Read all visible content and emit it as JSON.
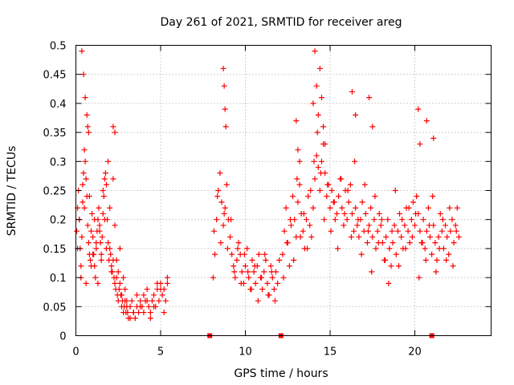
{
  "chart_data": {
    "type": "scatter",
    "title": "Day 261 of 2021, SRMTID for receiver areg",
    "xlabel": "GPS time / hours",
    "ylabel": "SRMTID / TECUs",
    "xlim": [
      0,
      24.5
    ],
    "ylim": [
      0,
      0.5
    ],
    "xticks": [
      0,
      5,
      10,
      15,
      20
    ],
    "yticks": [
      0,
      0.05,
      0.1,
      0.15,
      0.2,
      0.25,
      0.3,
      0.35,
      0.4,
      0.45,
      0.5
    ],
    "xtick_labels": [
      "0",
      "5",
      "10",
      "15",
      "20"
    ],
    "ytick_labels": [
      "0",
      "0.05",
      "0.1",
      "0.15",
      "0.2",
      "0.25",
      "0.3",
      "0.35",
      "0.4",
      "0.45",
      "0.5"
    ],
    "grid": true,
    "marker": "plus",
    "color": "#ff0000",
    "zero_markers": [
      {
        "x": 7.9,
        "y": 0
      },
      {
        "x": 12.1,
        "y": 0
      },
      {
        "x": 21.0,
        "y": 0
      }
    ],
    "series": [
      {
        "name": "SRMTID",
        "x": [
          0.05,
          0.1,
          0.15,
          0.2,
          0.25,
          0.3,
          0.35,
          0.4,
          0.45,
          0.5,
          0.55,
          0.6,
          0.65,
          0.7,
          0.75,
          0.8,
          0.85,
          0.9,
          0.95,
          1.0,
          1.05,
          1.1,
          1.15,
          1.2,
          1.25,
          1.3,
          1.35,
          1.4,
          1.45,
          1.5,
          1.55,
          1.6,
          1.65,
          1.7,
          1.75,
          1.8,
          1.85,
          1.9,
          1.95,
          2.0,
          2.05,
          2.1,
          2.15,
          2.2,
          2.25,
          2.3,
          2.35,
          2.4,
          2.45,
          2.5,
          2.55,
          2.6,
          2.65,
          2.7,
          2.75,
          2.8,
          2.85,
          2.9,
          2.95,
          3.0,
          3.05,
          3.1,
          3.2,
          3.3,
          3.4,
          3.5,
          3.6,
          3.7,
          3.8,
          3.9,
          4.0,
          4.1,
          4.2,
          4.3,
          4.4,
          4.5,
          4.6,
          4.7,
          4.8,
          4.9,
          5.0,
          5.1,
          5.2,
          5.3,
          5.4,
          0.1,
          0.2,
          0.3,
          0.4,
          0.5,
          0.6,
          0.7,
          0.8,
          0.9,
          1.0,
          1.1,
          1.2,
          1.3,
          1.4,
          1.5,
          1.6,
          1.7,
          1.8,
          1.9,
          2.0,
          2.1,
          2.2,
          2.3,
          2.4,
          2.5,
          2.6,
          2.7,
          2.8,
          2.9,
          3.0,
          3.2,
          3.4,
          3.6,
          3.8,
          4.0,
          4.2,
          4.4,
          4.6,
          4.8,
          5.0,
          5.2,
          5.4,
          0.35,
          0.45,
          0.55,
          0.65,
          0.75,
          2.2,
          2.3,
          8.1,
          8.2,
          8.3,
          8.4,
          8.5,
          8.6,
          8.7,
          8.8,
          8.9,
          9.0,
          9.1,
          9.2,
          9.3,
          9.4,
          9.5,
          9.6,
          9.7,
          9.8,
          9.9,
          10.0,
          10.1,
          10.2,
          10.3,
          10.4,
          10.5,
          10.6,
          10.7,
          10.8,
          10.9,
          11.0,
          11.1,
          11.2,
          11.3,
          11.4,
          11.5,
          11.6,
          11.7,
          11.8,
          11.9,
          12.0,
          8.15,
          8.35,
          8.55,
          8.75,
          8.95,
          9.15,
          9.35,
          9.55,
          9.75,
          9.95,
          10.15,
          10.35,
          10.55,
          10.75,
          10.95,
          11.15,
          11.35,
          11.55,
          11.75,
          8.7,
          8.75,
          8.8,
          8.85,
          12.2,
          12.3,
          12.4,
          12.5,
          12.6,
          12.7,
          12.8,
          12.9,
          13.0,
          13.1,
          13.2,
          13.3,
          13.4,
          13.5,
          13.6,
          13.7,
          13.8,
          13.9,
          14.0,
          14.1,
          14.2,
          14.3,
          14.4,
          14.5,
          14.6,
          14.7,
          14.8,
          14.9,
          15.0,
          15.1,
          15.2,
          15.3,
          15.4,
          15.5,
          15.6,
          15.7,
          15.8,
          15.9,
          16.0,
          16.1,
          16.2,
          16.3,
          16.4,
          16.5,
          16.6,
          16.7,
          16.8,
          16.9,
          17.0,
          17.1,
          17.2,
          17.3,
          17.4,
          17.5,
          17.6,
          17.7,
          17.8,
          17.9,
          18.0,
          18.1,
          18.2,
          18.3,
          18.4,
          18.5,
          18.6,
          18.7,
          18.8,
          18.9,
          19.0,
          19.1,
          19.2,
          19.3,
          19.4,
          19.5,
          19.6,
          19.7,
          19.8,
          19.9,
          20.0,
          20.1,
          20.2,
          20.3,
          20.4,
          20.5,
          20.6,
          20.7,
          20.8,
          20.9,
          21.0,
          21.1,
          21.2,
          21.3,
          21.4,
          21.5,
          21.6,
          21.7,
          21.8,
          21.9,
          22.0,
          22.1,
          22.2,
          22.3,
          22.4,
          22.5,
          22.6,
          12.25,
          12.45,
          12.65,
          12.85,
          13.05,
          13.25,
          13.45,
          13.65,
          13.85,
          14.05,
          14.25,
          14.45,
          14.65,
          14.85,
          15.05,
          15.25,
          15.45,
          15.65,
          15.85,
          16.05,
          16.25,
          16.45,
          16.65,
          16.85,
          17.05,
          17.25,
          17.45,
          17.65,
          17.85,
          18.05,
          18.25,
          18.45,
          18.65,
          18.85,
          19.05,
          19.25,
          19.45,
          19.65,
          19.85,
          20.05,
          20.25,
          20.45,
          20.65,
          20.85,
          21.05,
          21.25,
          21.45,
          21.65,
          21.85,
          22.05,
          22.25,
          22.45,
          14.0,
          14.1,
          14.2,
          14.3,
          14.4,
          14.5,
          14.6,
          14.7,
          13.0,
          13.1,
          16.3,
          16.5,
          17.3,
          17.5,
          20.2,
          20.3,
          20.7,
          21.1,
          13.2
        ],
        "y": [
          0.18,
          0.22,
          0.25,
          0.2,
          0.15,
          0.12,
          0.17,
          0.23,
          0.28,
          0.32,
          0.3,
          0.27,
          0.24,
          0.19,
          0.16,
          0.14,
          0.13,
          0.18,
          0.21,
          0.17,
          0.14,
          0.12,
          0.1,
          0.15,
          0.18,
          0.2,
          0.22,
          0.19,
          0.16,
          0.14,
          0.17,
          0.21,
          0.24,
          0.27,
          0.28,
          0.26,
          0.2,
          0.16,
          0.13,
          0.15,
          0.14,
          0.12,
          0.11,
          0.13,
          0.1,
          0.09,
          0.08,
          0.1,
          0.07,
          0.06,
          0.08,
          0.09,
          0.07,
          0.05,
          0.06,
          0.04,
          0.05,
          0.06,
          0.04,
          0.05,
          0.04,
          0.03,
          0.05,
          0.06,
          0.04,
          0.03,
          0.05,
          0.04,
          0.06,
          0.05,
          0.07,
          0.06,
          0.08,
          0.05,
          0.04,
          0.06,
          0.07,
          0.05,
          0.08,
          0.06,
          0.09,
          0.07,
          0.08,
          0.06,
          0.09,
          0.15,
          0.2,
          0.1,
          0.26,
          0.22,
          0.09,
          0.36,
          0.24,
          0.12,
          0.14,
          0.2,
          0.16,
          0.09,
          0.18,
          0.13,
          0.25,
          0.2,
          0.15,
          0.3,
          0.22,
          0.11,
          0.27,
          0.19,
          0.13,
          0.11,
          0.15,
          0.07,
          0.1,
          0.08,
          0.06,
          0.03,
          0.04,
          0.07,
          0.05,
          0.04,
          0.06,
          0.03,
          0.05,
          0.09,
          0.08,
          0.04,
          0.1,
          0.49,
          0.45,
          0.41,
          0.38,
          0.35,
          0.36,
          0.35,
          0.1,
          0.14,
          0.2,
          0.25,
          0.28,
          0.23,
          0.19,
          0.22,
          0.26,
          0.2,
          0.17,
          0.14,
          0.12,
          0.1,
          0.13,
          0.16,
          0.14,
          0.11,
          0.09,
          0.12,
          0.15,
          0.1,
          0.08,
          0.13,
          0.11,
          0.09,
          0.12,
          0.14,
          0.1,
          0.08,
          0.11,
          0.13,
          0.09,
          0.07,
          0.12,
          0.1,
          0.08,
          0.11,
          0.09,
          0.13,
          0.18,
          0.24,
          0.16,
          0.21,
          0.15,
          0.2,
          0.11,
          0.15,
          0.09,
          0.14,
          0.11,
          0.08,
          0.12,
          0.06,
          0.1,
          0.14,
          0.07,
          0.11,
          0.06,
          0.46,
          0.43,
          0.39,
          0.36,
          0.14,
          0.18,
          0.22,
          0.16,
          0.12,
          0.19,
          0.24,
          0.2,
          0.17,
          0.23,
          0.26,
          0.21,
          0.18,
          0.15,
          0.2,
          0.24,
          0.19,
          0.17,
          0.22,
          0.27,
          0.31,
          0.29,
          0.25,
          0.3,
          0.33,
          0.28,
          0.24,
          0.26,
          0.22,
          0.25,
          0.23,
          0.2,
          0.21,
          0.24,
          0.27,
          0.22,
          0.19,
          0.25,
          0.2,
          0.23,
          0.26,
          0.21,
          0.18,
          0.22,
          0.19,
          0.17,
          0.2,
          0.23,
          0.18,
          0.21,
          0.16,
          0.19,
          0.22,
          0.17,
          0.2,
          0.15,
          0.18,
          0.21,
          0.19,
          0.16,
          0.13,
          0.17,
          0.2,
          0.15,
          0.12,
          0.16,
          0.19,
          0.14,
          0.18,
          0.21,
          0.17,
          0.15,
          0.19,
          0.22,
          0.18,
          0.16,
          0.2,
          0.23,
          0.19,
          0.24,
          0.21,
          0.18,
          0.16,
          0.2,
          0.15,
          0.18,
          0.22,
          0.17,
          0.14,
          0.19,
          0.16,
          0.13,
          0.17,
          0.21,
          0.18,
          0.15,
          0.19,
          0.17,
          0.14,
          0.18,
          0.2,
          0.16,
          0.19,
          0.22,
          0.17,
          0.1,
          0.16,
          0.2,
          0.13,
          0.27,
          0.17,
          0.21,
          0.15,
          0.25,
          0.3,
          0.35,
          0.28,
          0.2,
          0.26,
          0.18,
          0.23,
          0.15,
          0.27,
          0.21,
          0.25,
          0.17,
          0.3,
          0.2,
          0.14,
          0.26,
          0.18,
          0.11,
          0.24,
          0.16,
          0.2,
          0.13,
          0.09,
          0.18,
          0.25,
          0.12,
          0.2,
          0.15,
          0.22,
          0.17,
          0.21,
          0.1,
          0.16,
          0.13,
          0.19,
          0.24,
          0.11,
          0.15,
          0.2,
          0.13,
          0.22,
          0.12,
          0.18,
          0.4,
          0.49,
          0.43,
          0.38,
          0.46,
          0.41,
          0.36,
          0.33,
          0.37,
          0.32,
          0.42,
          0.38,
          0.41,
          0.36,
          0.39,
          0.33,
          0.37,
          0.34,
          0.3
        ]
      }
    ]
  }
}
